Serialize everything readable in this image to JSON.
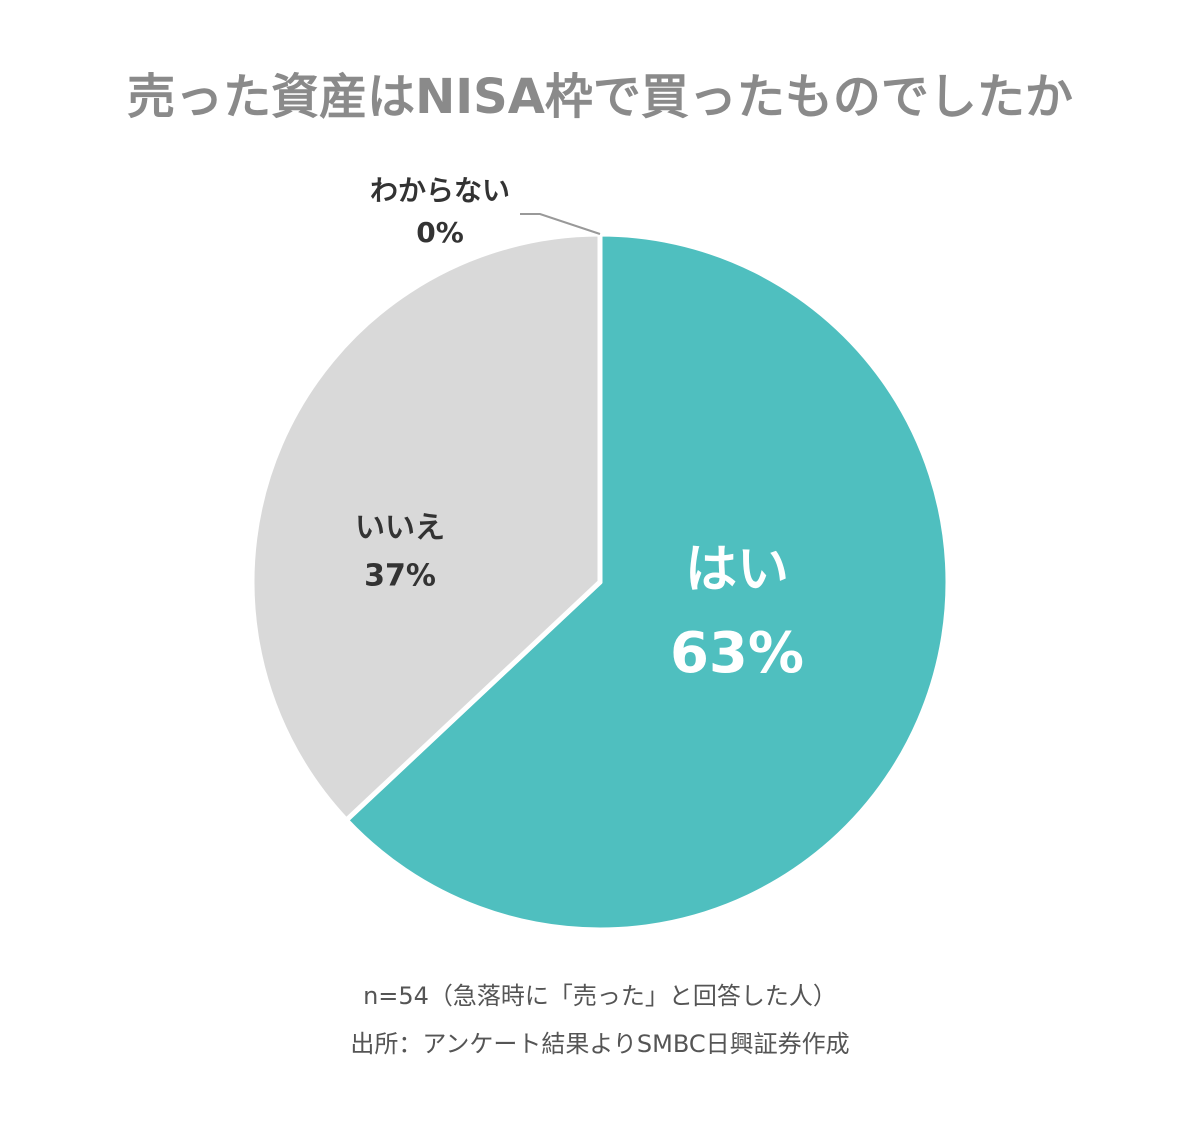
{
  "chart_data": {
    "type": "pie",
    "title": "売った資産はNISA枠で買ったものでしたか",
    "categories": [
      "はい",
      "いいえ",
      "わからない"
    ],
    "values": [
      63,
      37,
      0
    ],
    "value_labels": [
      "63%",
      "37%",
      "0%"
    ],
    "colors": [
      "#4fbfbf",
      "#d9d9d9",
      "#bdbdbd"
    ],
    "notes": [
      "n=54（急落時に「売った」と回答した人）",
      "出所：アンケート結果よりSMBC日興証券作成"
    ]
  }
}
